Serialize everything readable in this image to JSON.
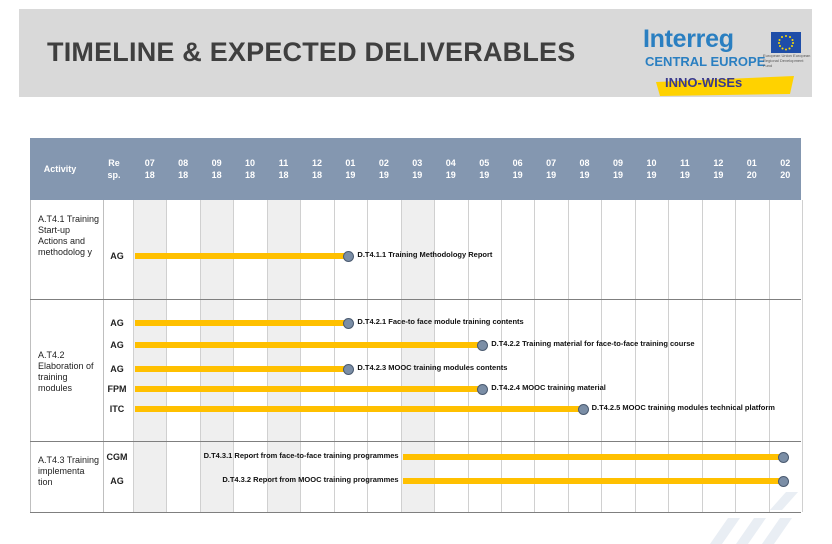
{
  "title": "TIMELINE & EXPECTED DELIVERABLES",
  "logo": {
    "brand": "Interreg",
    "program": "CENTRAL EUROPE",
    "project": "INNO-WISEs",
    "eu_text": "European Union European Regional Development Fund"
  },
  "colors": {
    "bar": "#ffc000",
    "header": "#8497b0",
    "milestone": "#7b8ea6"
  },
  "table": {
    "col_activity": "Activity",
    "col_resp": "Re sp.",
    "months": [
      {
        "m": "07",
        "y": "18"
      },
      {
        "m": "08",
        "y": "18"
      },
      {
        "m": "09",
        "y": "18"
      },
      {
        "m": "10",
        "y": "18"
      },
      {
        "m": "11",
        "y": "18"
      },
      {
        "m": "12",
        "y": "18"
      },
      {
        "m": "01",
        "y": "19"
      },
      {
        "m": "02",
        "y": "19"
      },
      {
        "m": "03",
        "y": "19"
      },
      {
        "m": "04",
        "y": "19"
      },
      {
        "m": "05",
        "y": "19"
      },
      {
        "m": "06",
        "y": "19"
      },
      {
        "m": "07",
        "y": "19"
      },
      {
        "m": "08",
        "y": "19"
      },
      {
        "m": "09",
        "y": "19"
      },
      {
        "m": "10",
        "y": "19"
      },
      {
        "m": "11",
        "y": "19"
      },
      {
        "m": "12",
        "y": "19"
      },
      {
        "m": "01",
        "y": "20"
      },
      {
        "m": "02",
        "y": "20"
      }
    ],
    "activities": [
      {
        "label": "A.T4.1 Training Start-up Actions and methodolog y"
      },
      {
        "label": "A.T4.2 Elaboration of training modules"
      },
      {
        "label": "A.T4.3 Training implementa tion"
      }
    ],
    "rows": [
      {
        "resp": "AG",
        "deliverable": "D.T4.1.1 Training Methodology Report",
        "start": "07/18",
        "end": "01/19",
        "label_side": "right"
      },
      {
        "resp": "AG",
        "deliverable": "D.T4.2.1 Face-to face module training contents",
        "start": "07/18",
        "end": "01/19",
        "label_side": "right"
      },
      {
        "resp": "AG",
        "deliverable": "D.T4.2.2 Training material for face-to-face training course",
        "start": "07/18",
        "end": "05/19",
        "label_side": "right"
      },
      {
        "resp": "AG",
        "deliverable": "D.T4.2.3 MOOC training modules contents",
        "start": "07/18",
        "end": "01/19",
        "label_side": "right"
      },
      {
        "resp": "FPM",
        "deliverable": "D.T4.2.4 MOOC training material",
        "start": "07/18",
        "end": "05/19",
        "label_side": "right"
      },
      {
        "resp": "ITC",
        "deliverable": "D.T4.2.5 MOOC training modules technical platform",
        "start": "07/18",
        "end": "08/19",
        "label_side": "right"
      },
      {
        "resp": "CGM",
        "deliverable": "D.T4.3.1 Report from face-to-face training programmes",
        "start": "03/19",
        "end": "02/20",
        "label_side": "left"
      },
      {
        "resp": "AG",
        "deliverable": "D.T4.3.2 Report from MOOC training programmes",
        "start": "03/19",
        "end": "02/20",
        "label_side": "left"
      }
    ]
  }
}
